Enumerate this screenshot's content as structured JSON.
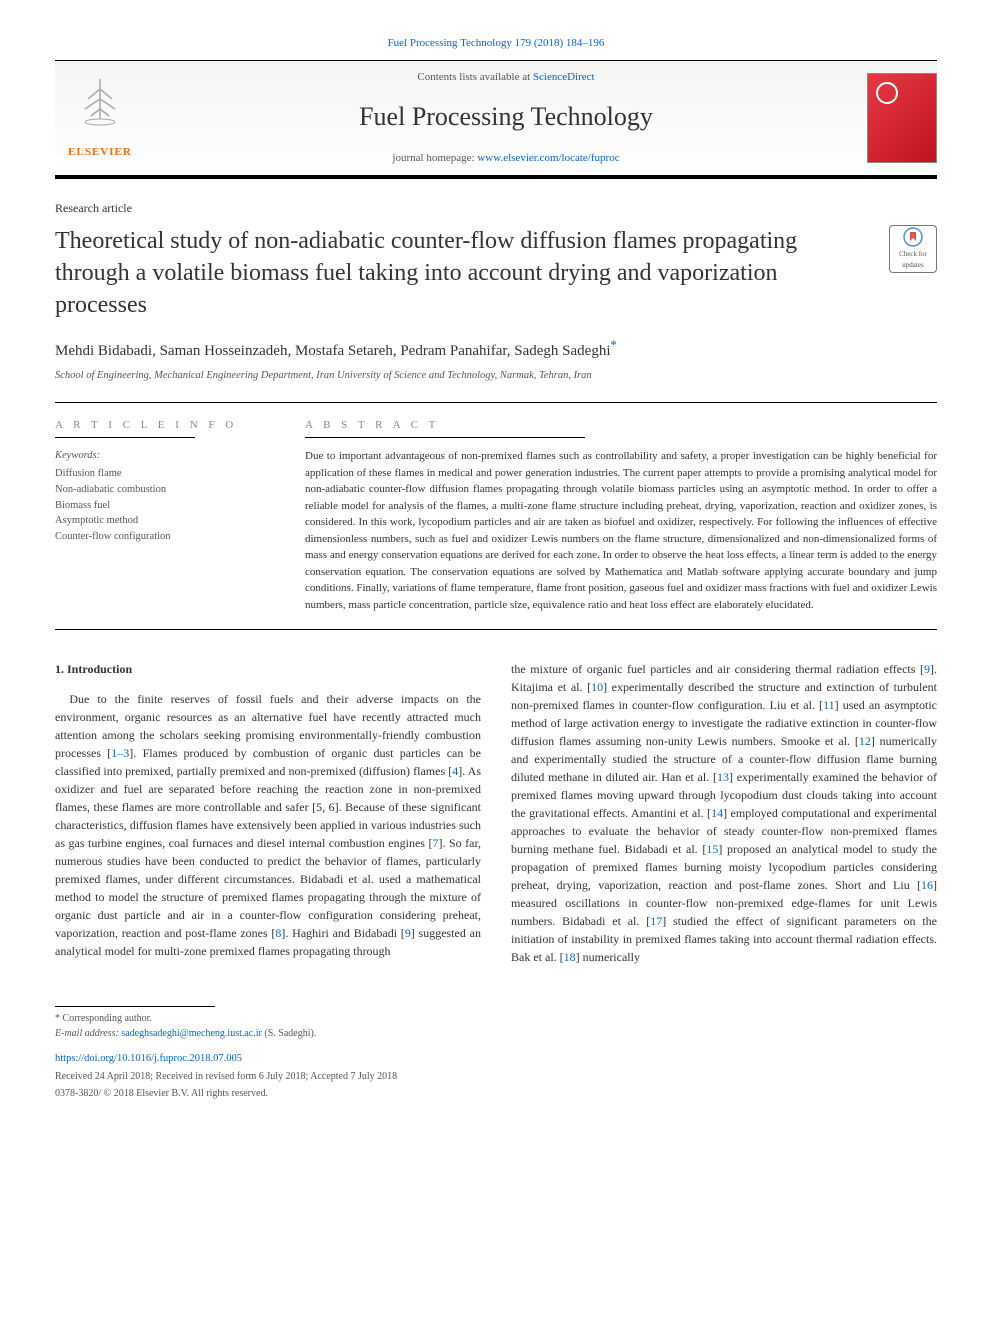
{
  "citation": "Fuel Processing Technology 179 (2018) 184–196",
  "masthead": {
    "contents_prefix": "Contents lists available at ",
    "contents_link": "ScienceDirect",
    "journal_name": "Fuel Processing Technology",
    "homepage_prefix": "journal homepage: ",
    "homepage_link": "www.elsevier.com/locate/fuproc",
    "elsevier_label": "ELSEVIER"
  },
  "article_type": "Research article",
  "title": "Theoretical study of non-adiabatic counter-flow diffusion flames propagating through a volatile biomass fuel taking into account drying and vaporization processes",
  "updates_badge": "Check for updates",
  "authors": "Mehdi Bidabadi, Saman Hosseinzadeh, Mostafa Setareh, Pedram Panahifar, Sadegh Sadeghi",
  "corr_author_mark": "*",
  "affiliation": "School of Engineering, Mechanical Engineering Department, Iran University of Science and Technology, Narmak, Tehran, Iran",
  "article_info": {
    "label": "A R T I C L E  I N F O",
    "keywords_label": "Keywords:",
    "keywords": [
      "Diffusion flame",
      "Non-adiabatic combustion",
      "Biomass fuel",
      "Asymptotic method",
      "Counter-flow configuration"
    ]
  },
  "abstract": {
    "label": "A B S T R A C T",
    "text": "Due to important advantageous of non-premixed flames such as controllability and safety, a proper investigation can be highly beneficial for application of these flames in medical and power generation industries. The current paper attempts to provide a promising analytical model for non-adiabatic counter-flow diffusion flames propagating through volatile biomass particles using an asymptotic method. In order to offer a reliable model for analysis of the flames, a multi-zone flame structure including preheat, drying, vaporization, reaction and oxidizer zones, is considered. In this work, lycopodium particles and air are taken as biofuel and oxidizer, respectively. For following the influences of effective dimensionless numbers, such as fuel and oxidizer Lewis numbers on the flame structure, dimensionalized and non-dimensionalized forms of mass and energy conservation equations are derived for each zone. In order to observe the heat loss effects, a linear term is added to the energy conservation equation. The conservation equations are solved by Mathematica and Matlab software applying accurate boundary and jump conditions. Finally, variations of flame temperature, flame front position, gaseous fuel and oxidizer mass fractions with fuel and oxidizer Lewis numbers, mass particle concentration, particle size, equivalence ratio and heat loss effect are elaborately elucidated."
  },
  "intro": {
    "heading": "1.  Introduction",
    "col1": "Due to the finite reserves of fossil fuels and their adverse impacts on the environment, organic resources as an alternative fuel have recently attracted much attention among the scholars seeking promising environmentally-friendly combustion processes [1–3]. Flames produced by combustion of organic dust particles can be classified into premixed, partially premixed and non-premixed (diffusion) flames [4]. As oxidizer and fuel are separated before reaching the reaction zone in non-premixed flames, these flames are more controllable and safer [5, 6]. Because of these significant characteristics, diffusion flames have extensively been applied in various industries such as gas turbine engines, coal furnaces and diesel internal combustion engines [7]. So far, numerous studies have been conducted to predict the behavior of flames, particularly premixed flames, under different circumstances. Bidabadi et al. used a mathematical method to model the structure of premixed flames propagating through the mixture of organic dust particle and air in a counter-flow configuration considering preheat, vaporization, reaction and post-flame zones [8]. Haghiri and Bidabadi [9] suggested an analytical model for multi-zone premixed flames propagating through",
    "col2": "the mixture of organic fuel particles and air considering thermal radiation effects [9]. Kitajima et al. [10] experimentally described the structure and extinction of turbulent non-premixed flames in counter-flow configuration. Liu et al. [11] used an asymptotic method of large activation energy to investigate the radiative extinction in counter-flow diffusion flames assuming non-unity Lewis numbers. Smooke et al. [12] numerically and experimentally studied the structure of a counter-flow diffusion flame burning diluted methane in diluted air. Han et al. [13] experimentally examined the behavior of premixed flames moving upward through lycopodium dust clouds taking into account the gravitational effects. Amantini et al. [14] employed computational and experimental approaches to evaluate the behavior of steady counter-flow non-premixed flames burning methane fuel. Bidabadi et al. [15] proposed an analytical model to study the propagation of premixed flames burning moisty lycopodium particles considering preheat, drying, vaporization, reaction and post-flame zones. Short and Liu [16] measured oscillations in counter-flow non-premixed edge-flames for unit Lewis numbers. Bidabadi et al. [17] studied the effect of significant parameters on the initiation of instability in premixed flames taking into account thermal radiation effects. Bak et al. [18] numerically"
  },
  "refs": [
    "1–3",
    "4",
    "5",
    "6",
    "7",
    "8",
    "9",
    "9",
    "10",
    "11",
    "12",
    "13",
    "14",
    "15",
    "16",
    "17",
    "18"
  ],
  "footer": {
    "corr_label": "* Corresponding author.",
    "email_label": "E-mail address: ",
    "email": "sadeghsadeghi@mecheng.iust.ac.ir",
    "email_suffix": " (S. Sadeghi).",
    "doi": "https://doi.org/10.1016/j.fuproc.2018.07.005",
    "received": "Received 24 April 2018; Received in revised form 6 July 2018; Accepted 7 July 2018",
    "copyright": "0378-3820/ © 2018 Elsevier B.V. All rights reserved."
  }
}
